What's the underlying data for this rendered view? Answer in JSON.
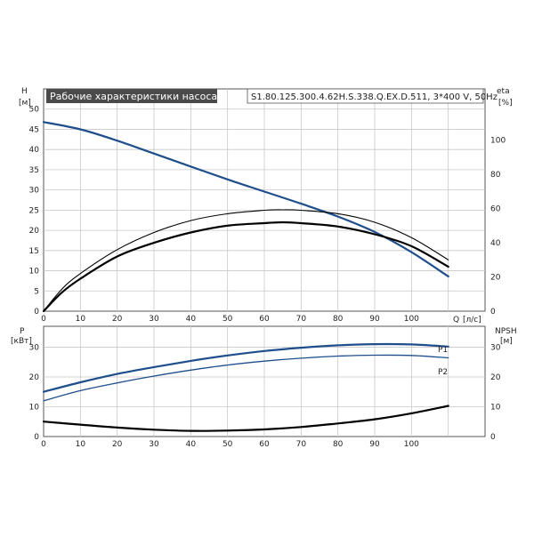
{
  "chart_data": [
    {
      "type": "line",
      "title": "Рабочие характеристики насоса",
      "subtitle": "S1.80.125.300.4.62H.S.338.Q.EX.D.511, 3*400 V, 50Hz",
      "left_axis": {
        "label": "H",
        "unit": "[м]",
        "range": [
          0,
          55
        ],
        "ticks": [
          0,
          5,
          10,
          15,
          20,
          25,
          30,
          35,
          40,
          45,
          50
        ]
      },
      "right_axis": {
        "label": "eta",
        "unit": "[%]",
        "range": [
          0,
          130
        ],
        "ticks": [
          0,
          20,
          40,
          60,
          80,
          100
        ]
      },
      "x_axis": {
        "label": "Q",
        "unit": "[л/с]",
        "range": [
          0,
          120
        ],
        "ticks": [
          0,
          10,
          20,
          30,
          40,
          50,
          60,
          70,
          80,
          90,
          100
        ]
      },
      "grid": true,
      "series": [
        {
          "id": "H",
          "color": "#1f4e8c",
          "axis": "left",
          "x": [
            0,
            10,
            20,
            30,
            40,
            50,
            60,
            70,
            80,
            90,
            100,
            110
          ],
          "y": [
            46.8,
            45.0,
            42.2,
            39.0,
            35.8,
            32.6,
            29.6,
            26.6,
            23.4,
            19.6,
            14.6,
            8.6
          ]
        },
        {
          "id": "eta_upper",
          "color": "#000000",
          "axis": "right",
          "x": [
            0,
            5,
            10,
            20,
            30,
            40,
            50,
            60,
            65,
            70,
            80,
            90,
            100,
            110
          ],
          "y": [
            0,
            13,
            22,
            36,
            46,
            53,
            57,
            59,
            59.3,
            59,
            57,
            52,
            43,
            30
          ]
        },
        {
          "id": "eta_lower",
          "color": "#000000",
          "axis": "right",
          "x": [
            0,
            5,
            10,
            20,
            30,
            40,
            50,
            60,
            65,
            70,
            80,
            90,
            100,
            110
          ],
          "y": [
            0,
            11,
            19,
            32,
            40,
            46,
            50,
            51.5,
            52,
            51.5,
            49.5,
            45,
            38,
            26
          ]
        }
      ]
    },
    {
      "type": "line",
      "left_axis": {
        "label": "P",
        "unit": "[кВт]",
        "range": [
          0,
          37
        ],
        "ticks": [
          0,
          10,
          20,
          30
        ]
      },
      "right_axis": {
        "label": "NPSH",
        "unit": "[м]",
        "range": [
          0,
          37
        ],
        "ticks": [
          0,
          10,
          20,
          30
        ]
      },
      "x_axis": {
        "range": [
          0,
          120
        ],
        "ticks": [
          0,
          10,
          20,
          30,
          40,
          50,
          60,
          70,
          80,
          90,
          100
        ]
      },
      "grid": true,
      "series": [
        {
          "id": "P1",
          "name": "P1",
          "color": "#1f4e8c",
          "axis": "left",
          "x": [
            0,
            10,
            20,
            30,
            40,
            50,
            60,
            70,
            80,
            90,
            100,
            110
          ],
          "y": [
            15.0,
            18.2,
            21.0,
            23.3,
            25.4,
            27.2,
            28.7,
            29.8,
            30.6,
            31.0,
            30.9,
            30.2
          ]
        },
        {
          "id": "P2",
          "name": "P2",
          "color": "#1f4e8c",
          "axis": "left",
          "x": [
            0,
            10,
            20,
            30,
            40,
            50,
            60,
            70,
            80,
            90,
            100,
            110
          ],
          "y": [
            12.0,
            15.4,
            18.0,
            20.3,
            22.3,
            24.0,
            25.3,
            26.3,
            27.0,
            27.3,
            27.2,
            26.4
          ]
        },
        {
          "id": "NPSH",
          "color": "#000000",
          "axis": "right",
          "x": [
            0,
            10,
            20,
            30,
            40,
            50,
            60,
            70,
            80,
            90,
            100,
            110
          ],
          "y": [
            5.0,
            4.0,
            3.0,
            2.3,
            1.9,
            2.0,
            2.4,
            3.2,
            4.4,
            5.8,
            7.8,
            10.3
          ]
        }
      ]
    }
  ]
}
